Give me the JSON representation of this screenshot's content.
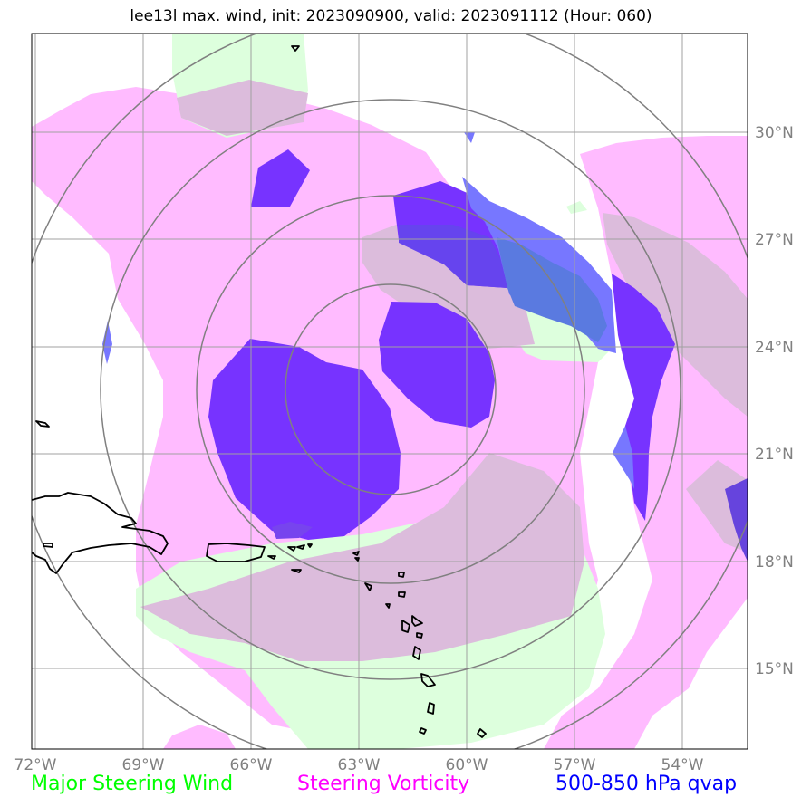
{
  "title": "lee13l max. wind, init: 2023090900, valid: 2023091112 (Hour: 060)",
  "map": {
    "lon_range": [
      -72.2,
      -52.3
    ],
    "lat_range": [
      12.8,
      32.5
    ],
    "lon_ticks": [
      {
        "value": -72,
        "label": "72°W"
      },
      {
        "value": -69,
        "label": "69°W"
      },
      {
        "value": -66,
        "label": "66°W"
      },
      {
        "value": -63,
        "label": "63°W"
      },
      {
        "value": -60,
        "label": "60°W"
      },
      {
        "value": -57,
        "label": "57°W"
      },
      {
        "value": -54,
        "label": "54°W"
      }
    ],
    "lat_ticks": [
      {
        "value": 30,
        "label": "30°N"
      },
      {
        "value": 27,
        "label": "27°N"
      },
      {
        "value": 24,
        "label": "24°N"
      },
      {
        "value": 21,
        "label": "21°N"
      },
      {
        "value": 18,
        "label": "18°N"
      },
      {
        "value": 15,
        "label": "15°N"
      }
    ],
    "range_rings_deg": [
      3,
      5.5,
      8,
      10.5
    ]
  },
  "legend": {
    "wind": {
      "label": "Major Steering Wind",
      "color": "#00ff00"
    },
    "vorticity": {
      "label": "Steering Vorticity",
      "color": "#ff00ff"
    },
    "qvap": {
      "label": "500-850 hPa qvap",
      "color": "#0000ff"
    }
  }
}
